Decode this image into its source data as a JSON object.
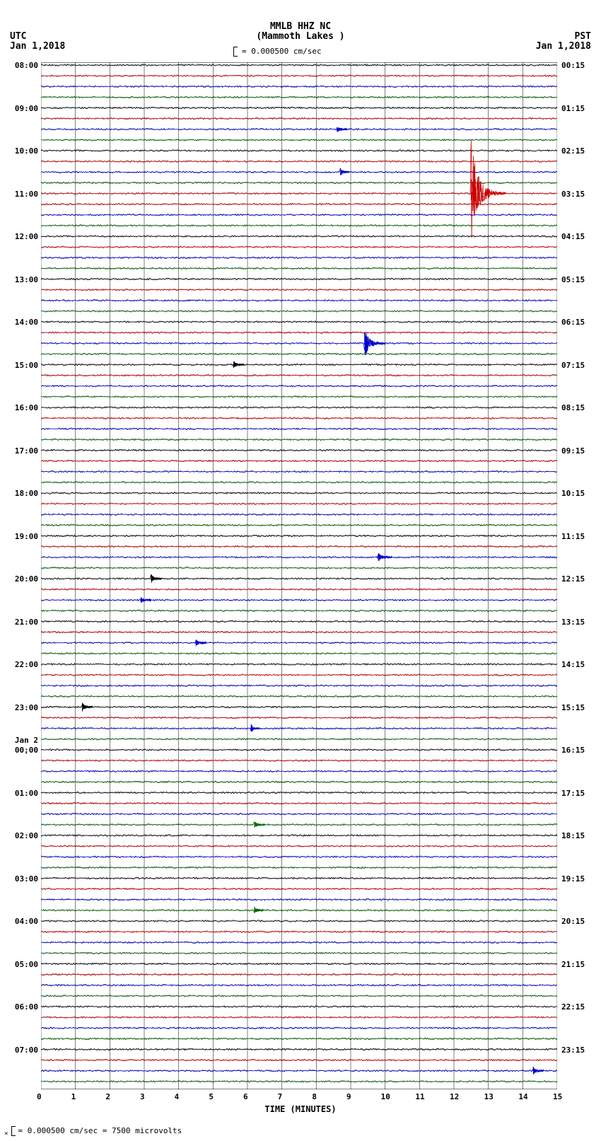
{
  "header": {
    "left_tz": "UTC",
    "left_date": "Jan 1,2018",
    "right_tz": "PST",
    "right_date": "Jan 1,2018",
    "station": "MMLB HHZ NC",
    "location": "(Mammoth Lakes )",
    "scale_text": "= 0.000500 cm/sec"
  },
  "footer": {
    "scale_text": "= 0.000500 cm/sec =    7500 microvolts"
  },
  "xaxis": {
    "label": "TIME (MINUTES)",
    "ticks": [
      0,
      1,
      2,
      3,
      4,
      5,
      6,
      7,
      8,
      9,
      10,
      11,
      12,
      13,
      14,
      15
    ],
    "fontsize": 11,
    "color": "#000000"
  },
  "plot": {
    "background_color": "#ffffff",
    "grid_color": "#000000",
    "grid_width": 0.5,
    "n_traces": 96,
    "trace_spacing": 15.125,
    "trace_colors": [
      "#000000",
      "#cc0000",
      "#0000cc",
      "#006600"
    ],
    "noise_amplitude": 1.2,
    "xlim": [
      0,
      15
    ],
    "left_times": [
      "08:00",
      "09:00",
      "10:00",
      "11:00",
      "12:00",
      "13:00",
      "14:00",
      "15:00",
      "16:00",
      "17:00",
      "18:00",
      "19:00",
      "20:00",
      "21:00",
      "22:00",
      "23:00",
      "00;00",
      "01:00",
      "02:00",
      "03:00",
      "04:00",
      "05:00",
      "06:00",
      "07:00"
    ],
    "left_date2": "Jan 2",
    "right_times": [
      "00:15",
      "01:15",
      "02:15",
      "03:15",
      "04:15",
      "05:15",
      "06:15",
      "07:15",
      "08:15",
      "09:15",
      "10:15",
      "11:15",
      "12:15",
      "13:15",
      "14:15",
      "15:15",
      "16:15",
      "17:15",
      "18:15",
      "19:15",
      "20:15",
      "21:15",
      "22:15",
      "23:15"
    ],
    "events": [
      {
        "trace": 6,
        "x_min": 8.6,
        "amplitude": 4,
        "duration": 0.3,
        "color": "#0000cc"
      },
      {
        "trace": 10,
        "x_min": 8.7,
        "amplitude": 5,
        "duration": 0.25,
        "color": "#0000cc"
      },
      {
        "trace": 12,
        "x_min": 12.5,
        "amplitude": 75,
        "duration": 1.0,
        "color": "#cc0000"
      },
      {
        "trace": 26,
        "x_min": 9.4,
        "amplitude": 22,
        "duration": 0.6,
        "color": "#0000cc"
      },
      {
        "trace": 28,
        "x_min": 5.6,
        "amplitude": 4,
        "duration": 0.3,
        "color": "#000000"
      },
      {
        "trace": 46,
        "x_min": 9.8,
        "amplitude": 6,
        "duration": 0.4,
        "color": "#0000cc"
      },
      {
        "trace": 48,
        "x_min": 3.2,
        "amplitude": 6,
        "duration": 0.3,
        "color": "#000000"
      },
      {
        "trace": 50,
        "x_min": 2.9,
        "amplitude": 3,
        "duration": 0.3,
        "color": "#0000cc"
      },
      {
        "trace": 54,
        "x_min": 4.5,
        "amplitude": 4,
        "duration": 0.3,
        "color": "#0000cc"
      },
      {
        "trace": 60,
        "x_min": 1.2,
        "amplitude": 5,
        "duration": 0.3,
        "color": "#000000"
      },
      {
        "trace": 62,
        "x_min": 6.1,
        "amplitude": 6,
        "duration": 0.25,
        "color": "#0000cc"
      },
      {
        "trace": 71,
        "x_min": 6.2,
        "amplitude": 4,
        "duration": 0.3,
        "color": "#006600"
      },
      {
        "trace": 79,
        "x_min": 6.2,
        "amplitude": 5,
        "duration": 0.25,
        "color": "#006600"
      },
      {
        "trace": 94,
        "x_min": 14.3,
        "amplitude": 5,
        "duration": 0.3,
        "color": "#0000cc"
      }
    ]
  },
  "colors": {
    "background": "#ffffff",
    "text": "#000000",
    "axis": "#000000"
  }
}
